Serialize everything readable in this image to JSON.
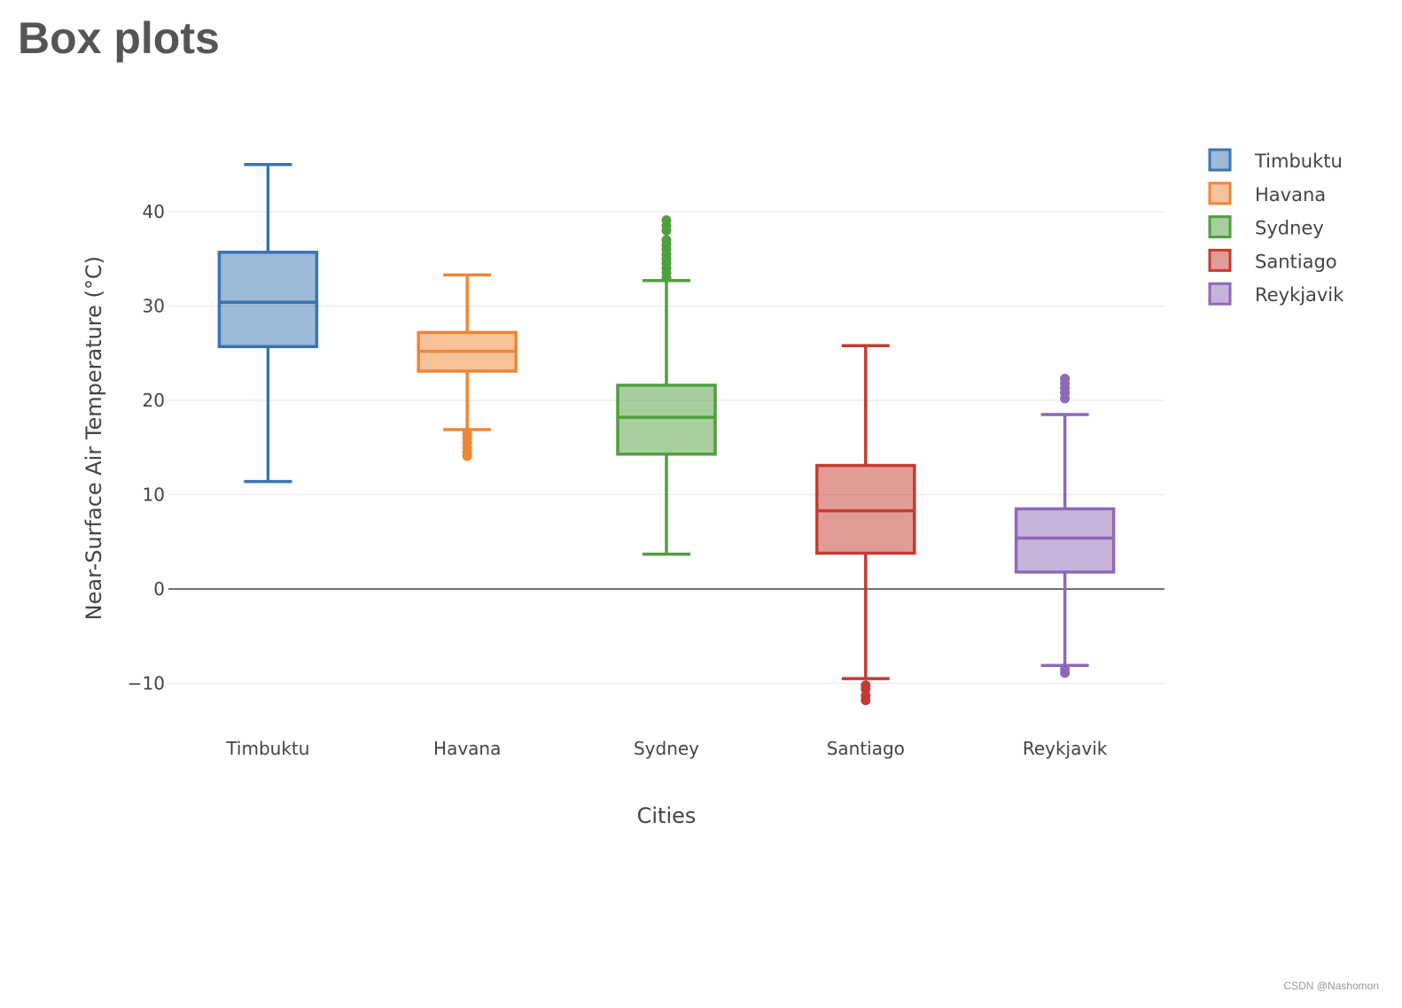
{
  "title": "Box plots",
  "watermark": "CSDN @Nashomon",
  "chart_data": {
    "type": "box",
    "title": "Box plots",
    "xlabel": "Cities",
    "ylabel": "Near-Surface Air Temperature (°C)",
    "ylim": [
      -14,
      48
    ],
    "yticks": [
      -10,
      0,
      10,
      20,
      30,
      40
    ],
    "ytick_labels": [
      "−10",
      "0",
      "10",
      "20",
      "30",
      "40"
    ],
    "grid": true,
    "legend_position": "top-right",
    "categories": [
      "Timbuktu",
      "Havana",
      "Sydney",
      "Santiago",
      "Reykjavik"
    ],
    "series": [
      {
        "name": "Timbuktu",
        "color": "#3a74b1",
        "lower_whisker": 11.4,
        "q1": 25.7,
        "median": 30.4,
        "q3": 35.7,
        "upper_whisker": 45.0,
        "outliers": []
      },
      {
        "name": "Havana",
        "color": "#ef8636",
        "lower_whisker": 16.9,
        "q1": 23.1,
        "median": 25.2,
        "q3": 27.2,
        "upper_whisker": 33.3,
        "outliers": [
          14.1,
          14.5,
          15.0,
          15.5,
          16.0,
          16.5
        ]
      },
      {
        "name": "Sydney",
        "color": "#519e3e",
        "lower_whisker": 3.7,
        "q1": 14.3,
        "median": 18.2,
        "q3": 21.6,
        "upper_whisker": 32.7,
        "outliers": [
          33.0,
          33.5,
          34.0,
          34.5,
          35.0,
          35.5,
          36.0,
          36.5,
          37.0,
          38.0,
          38.5,
          39.1
        ]
      },
      {
        "name": "Santiago",
        "color": "#c53a32",
        "lower_whisker": -9.5,
        "q1": 3.8,
        "median": 8.3,
        "q3": 13.1,
        "upper_whisker": 25.8,
        "outliers": [
          -10.2,
          -10.6,
          -11.3,
          -11.8
        ]
      },
      {
        "name": "Reykjavik",
        "color": "#8d69b8",
        "lower_whisker": -8.1,
        "q1": 1.8,
        "median": 5.4,
        "q3": 8.5,
        "upper_whisker": 18.5,
        "outliers": [
          -8.5,
          -8.9,
          20.2,
          20.8,
          21.3,
          21.8,
          22.3
        ]
      }
    ]
  }
}
